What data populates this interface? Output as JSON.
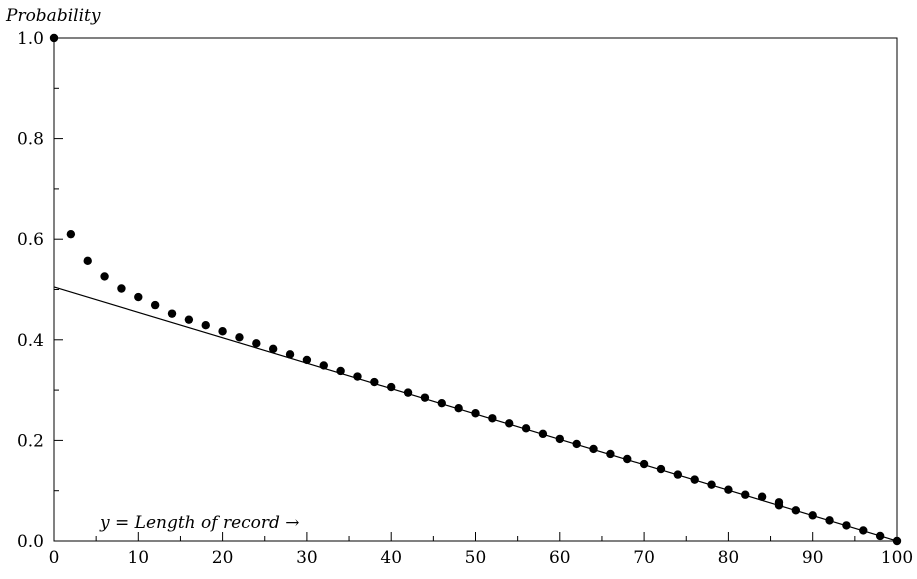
{
  "chart_data": {
    "type": "scatter",
    "ylabel": "Probability",
    "xlabel": "y = Length of record →",
    "xlim": [
      0,
      100
    ],
    "ylim": [
      0,
      1.0
    ],
    "x_ticks": [
      0,
      10,
      20,
      30,
      40,
      50,
      60,
      70,
      80,
      90,
      100
    ],
    "x_tick_labels": [
      "0",
      "10",
      "20",
      "30",
      "40",
      "50",
      "60",
      "70",
      "80",
      "90",
      "100"
    ],
    "y_ticks": [
      0,
      0.2,
      0.4,
      0.6,
      0.8,
      1.0
    ],
    "y_tick_labels": [
      "0.0",
      "0.2",
      "0.4",
      "0.6",
      "0.8",
      "1.0"
    ],
    "grid": false,
    "series": [
      {
        "kind": "points",
        "points": [
          [
            0,
            1.0
          ],
          [
            2,
            0.61
          ],
          [
            4,
            0.557
          ],
          [
            6,
            0.526
          ],
          [
            8,
            0.502
          ],
          [
            10,
            0.485
          ],
          [
            12,
            0.469
          ],
          [
            14,
            0.452
          ],
          [
            16,
            0.44
          ],
          [
            18,
            0.429
          ],
          [
            20,
            0.417
          ],
          [
            22,
            0.405
          ],
          [
            24,
            0.393
          ],
          [
            26,
            0.382
          ],
          [
            28,
            0.371
          ],
          [
            30,
            0.36
          ],
          [
            32,
            0.349
          ],
          [
            34,
            0.338
          ],
          [
            36,
            0.327
          ],
          [
            38,
            0.316
          ],
          [
            40,
            0.306
          ],
          [
            42,
            0.295
          ],
          [
            44,
            0.285
          ],
          [
            46,
            0.274
          ],
          [
            48,
            0.264
          ],
          [
            50,
            0.254
          ],
          [
            52,
            0.244
          ],
          [
            54,
            0.234
          ],
          [
            56,
            0.224
          ],
          [
            58,
            0.213
          ],
          [
            60,
            0.203
          ],
          [
            62,
            0.193
          ],
          [
            64,
            0.183
          ],
          [
            66,
            0.173
          ],
          [
            68,
            0.163
          ],
          [
            70,
            0.153
          ],
          [
            72,
            0.143
          ],
          [
            74,
            0.132
          ],
          [
            76,
            0.122
          ],
          [
            78,
            0.112
          ],
          [
            80,
            0.102
          ],
          [
            82,
            0.092
          ],
          [
            84,
            0.088
          ],
          [
            86,
            0.077
          ],
          [
            86,
            0.071
          ],
          [
            88,
            0.061
          ],
          [
            90,
            0.051
          ],
          [
            92,
            0.041
          ],
          [
            94,
            0.031
          ],
          [
            96,
            0.021
          ],
          [
            98,
            0.01
          ],
          [
            100,
            0.0
          ]
        ]
      },
      {
        "kind": "line",
        "points": [
          [
            0,
            0.505
          ],
          [
            100,
            0.0
          ]
        ]
      }
    ],
    "colors": {
      "points": "#000000",
      "line": "#000000",
      "axes": "#000000"
    }
  }
}
